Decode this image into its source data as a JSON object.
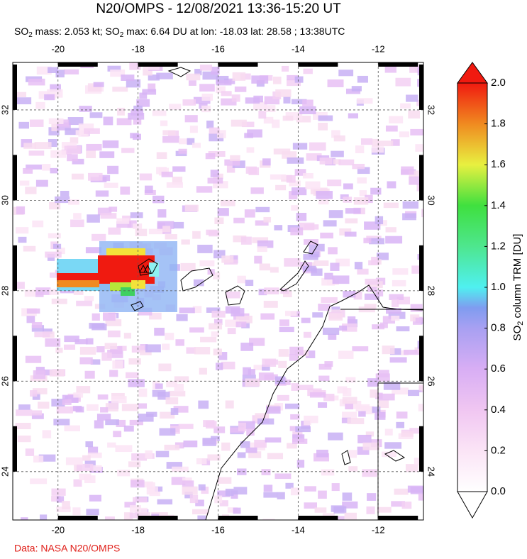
{
  "title": "N20/OMPS - 12/08/2021 13:36-15:20 UT",
  "subtitle": [
    "SO",
    "2",
    " mass: 2.053 kt; SO",
    "2",
    " max: 6.64 DU at lon: -18.03 lat: 28.58 ; 13:38UTC"
  ],
  "map": {
    "xlim": [
      -21.13,
      -10.87
    ],
    "ylim": [
      22.93,
      33.05
    ],
    "lon_ticks": [
      -20,
      -18,
      -16,
      -14,
      -12
    ],
    "lat_ticks": [
      24,
      26,
      28,
      30,
      32
    ]
  },
  "colorbar": {
    "range": [
      0,
      2
    ],
    "ticks": [
      {
        "value": 0,
        "label": "0.0"
      },
      {
        "value": 0.2,
        "label": "0.2"
      },
      {
        "value": 0.4,
        "label": "0.4"
      },
      {
        "value": 0.6,
        "label": "0.6"
      },
      {
        "value": 0.8,
        "label": "0.8"
      },
      {
        "value": 1,
        "label": "1.0"
      },
      {
        "value": 1.2,
        "label": "1.2"
      },
      {
        "value": 1.4,
        "label": "1.4"
      },
      {
        "value": 1.6,
        "label": "1.6"
      },
      {
        "value": 1.8,
        "label": "1.8"
      },
      {
        "value": 2,
        "label": "2.0"
      }
    ],
    "label": [
      "SO",
      "2",
      " column TRM [DU]"
    ]
  },
  "source": "Data: NASA N20/OMPS"
}
